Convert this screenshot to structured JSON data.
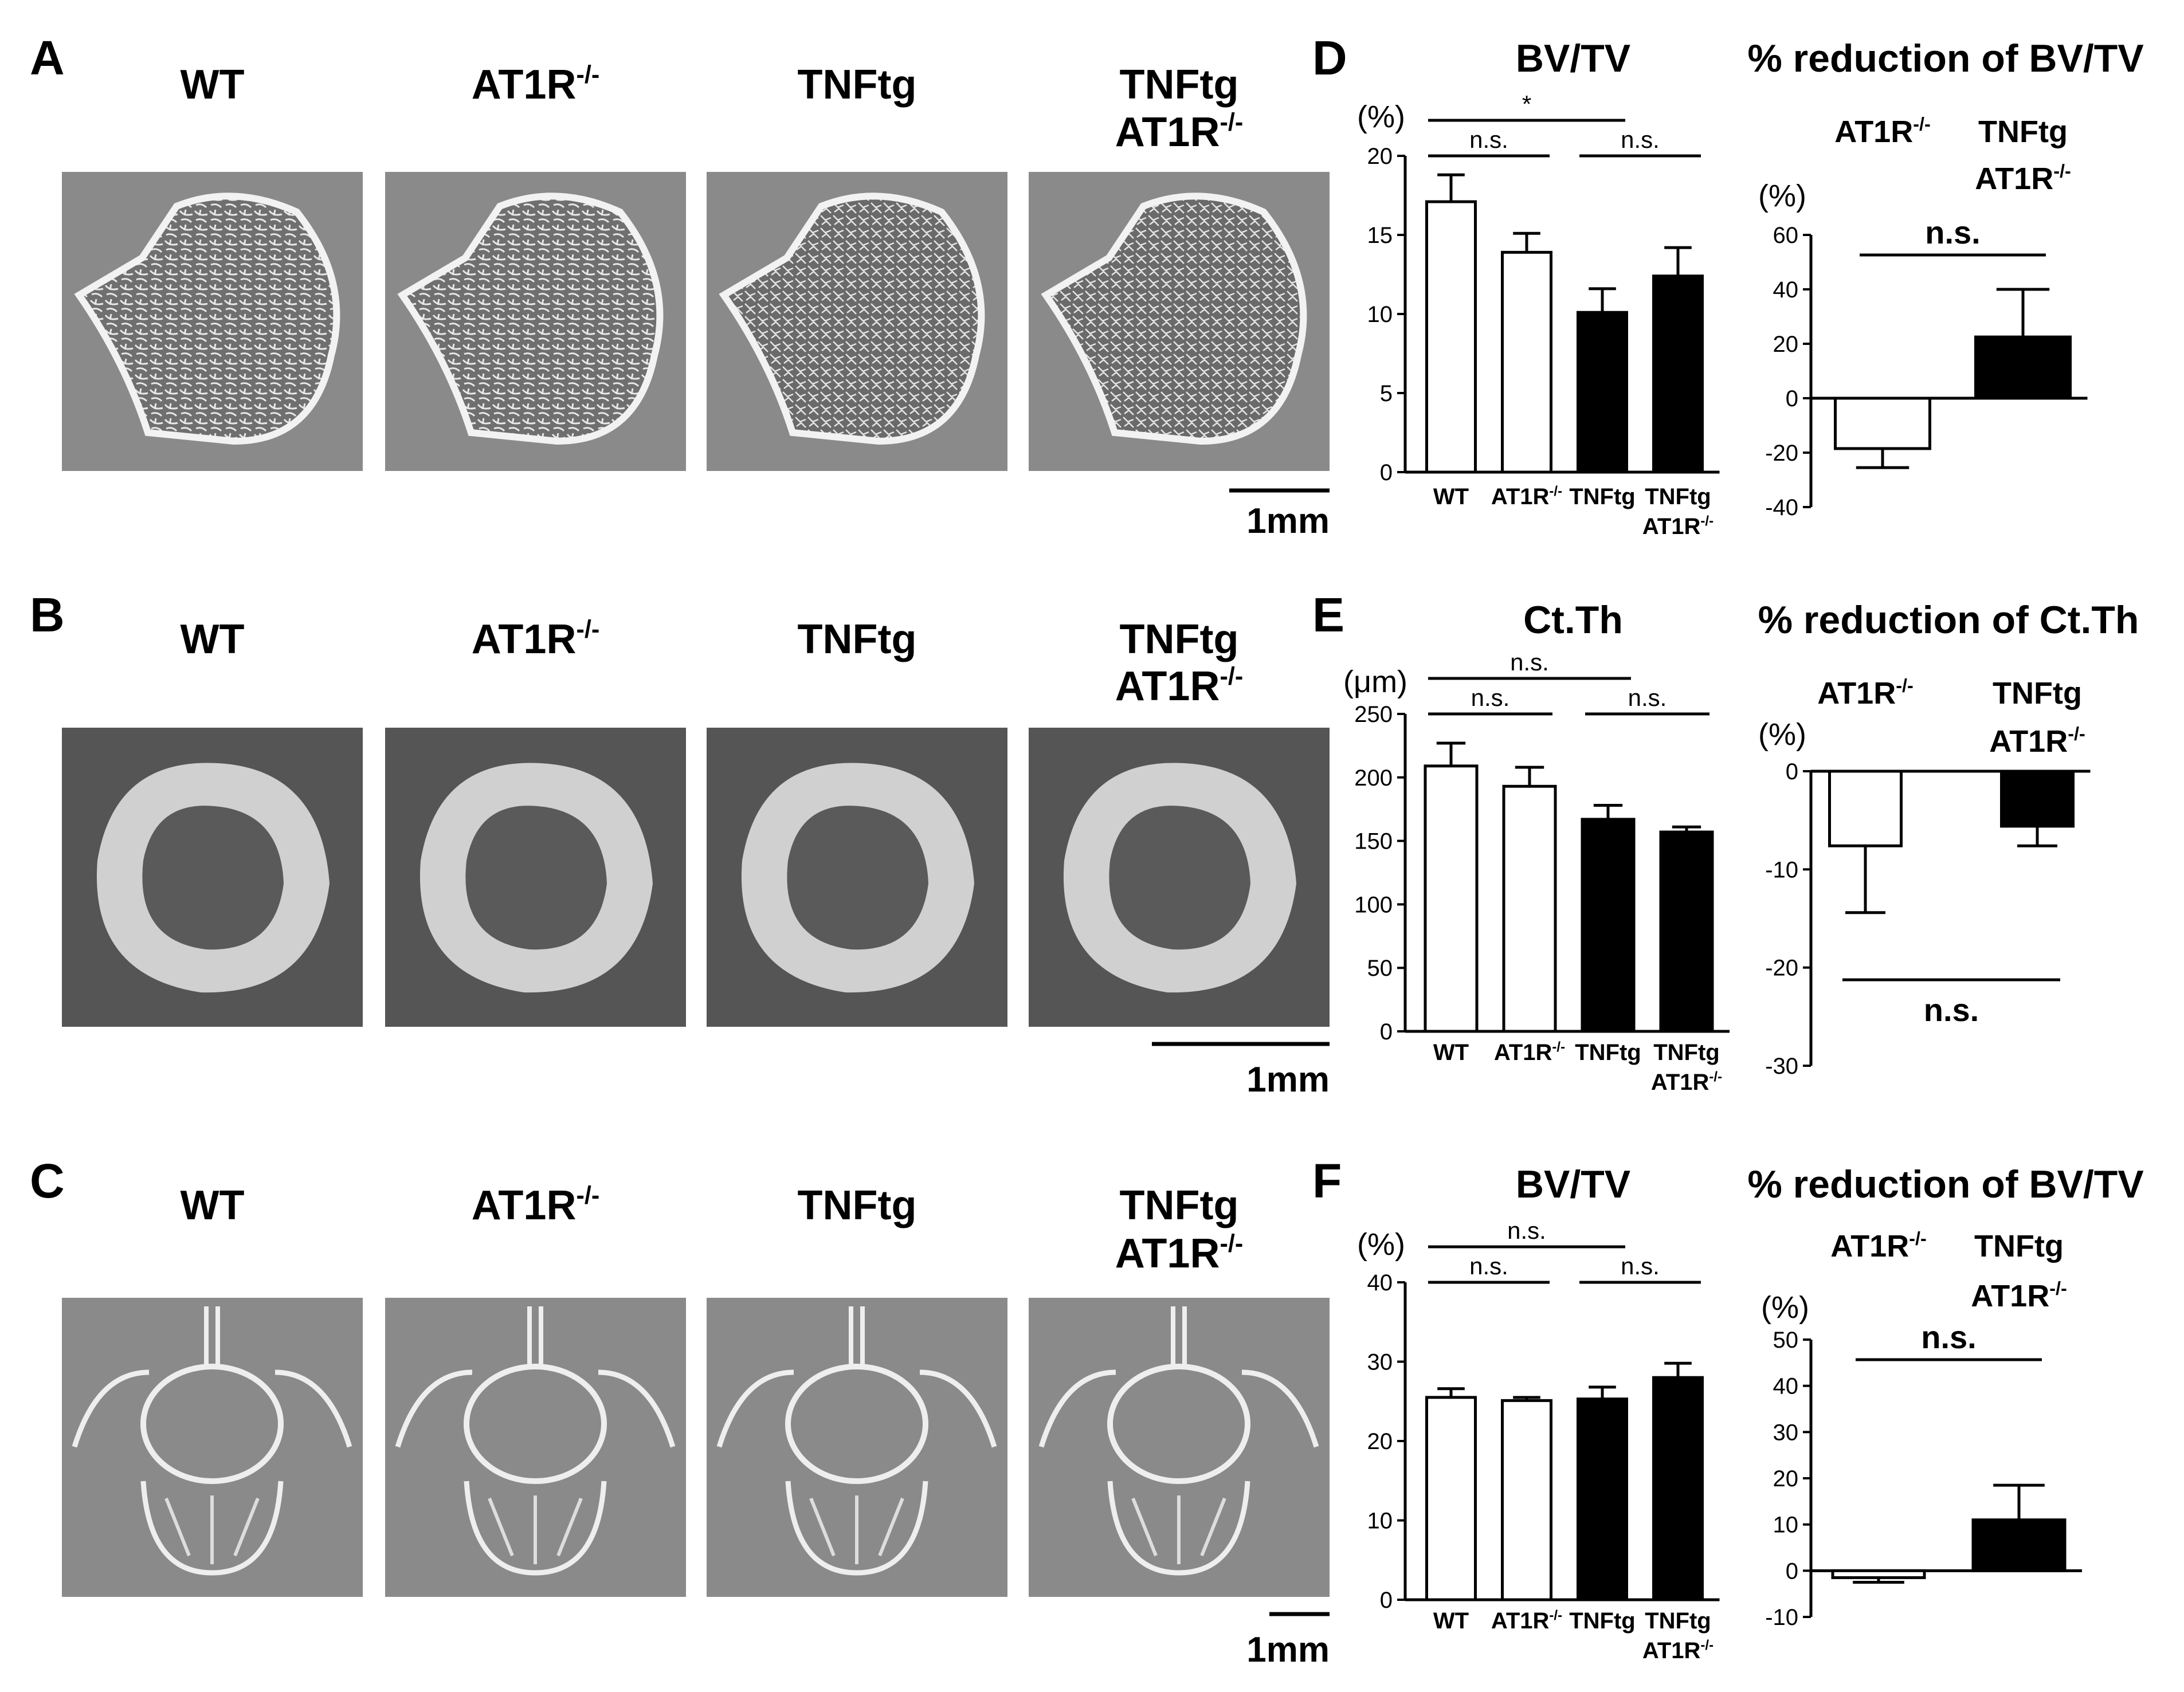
{
  "panel_letters": [
    "A",
    "B",
    "C",
    "D",
    "E",
    "F"
  ],
  "image_panels": [
    {
      "letter": "A",
      "kind": "trabecular",
      "columns": [
        {
          "line1": "WT",
          "line2": ""
        },
        {
          "line1": "AT1R",
          "sup1": "-/-",
          "line2": ""
        },
        {
          "line1": "TNFtg",
          "line2": ""
        },
        {
          "line1": "TNFtg",
          "line2": "AT1R",
          "sup2": "-/-"
        }
      ],
      "scale_bar": "1mm"
    },
    {
      "letter": "B",
      "kind": "cortical",
      "columns": [
        {
          "line1": "WT",
          "line2": ""
        },
        {
          "line1": "AT1R",
          "sup1": "-/-",
          "line2": ""
        },
        {
          "line1": "TNFtg",
          "line2": ""
        },
        {
          "line1": "TNFtg",
          "line2": "AT1R",
          "sup2": "-/-"
        }
      ],
      "scale_bar": "1mm"
    },
    {
      "letter": "C",
      "kind": "vertebra",
      "columns": [
        {
          "line1": "WT",
          "line2": ""
        },
        {
          "line1": "AT1R",
          "sup1": "-/-",
          "line2": ""
        },
        {
          "line1": "TNFtg",
          "line2": ""
        },
        {
          "line1": "TNFtg",
          "line2": "AT1R",
          "sup2": "-/-"
        }
      ],
      "scale_bar": "1mm"
    }
  ],
  "chart_data": [
    {
      "panel": "D",
      "type": "bar",
      "title": "BV/TV",
      "unit": "(%)",
      "categories": [
        {
          "l1": "WT",
          "l2": "",
          "sup": ""
        },
        {
          "l1": "AT1R",
          "l2": "",
          "sup": "-/-"
        },
        {
          "l1": "TNFtg",
          "l2": "",
          "sup": ""
        },
        {
          "l1": "TNFtg",
          "l2": "AT1R",
          "sup": "-/-"
        }
      ],
      "values": [
        17.1,
        13.9,
        10.1,
        12.4
      ],
      "errors": [
        1.7,
        1.2,
        1.5,
        1.8
      ],
      "fills": [
        "#ffffff",
        "#ffffff",
        "#000000",
        "#000000"
      ],
      "ylim": [
        0,
        20
      ],
      "yticks": [
        0,
        5,
        10,
        15,
        20
      ],
      "significance": [
        {
          "from": 0,
          "to": 1,
          "label": "n.s."
        },
        {
          "from": 2,
          "to": 3,
          "label": "n.s."
        },
        {
          "from": 0,
          "to": 2,
          "label": "*"
        }
      ]
    },
    {
      "panel": "D2",
      "type": "bar",
      "title": "% reduction of BV/TV",
      "unit": "(%)",
      "categories": [
        {
          "l1": "AT1R",
          "l2": "",
          "sup": "-/-"
        },
        {
          "l1": "TNFtg",
          "l2": "AT1R",
          "sup": "-/-"
        }
      ],
      "values": [
        -18.5,
        22.5
      ],
      "errors": [
        7.0,
        17.5
      ],
      "fills": [
        "#ffffff",
        "#000000"
      ],
      "ylim": [
        -40,
        60
      ],
      "yticks": [
        -40,
        -20,
        0,
        20,
        40,
        60
      ],
      "significance": [
        {
          "from": 0,
          "to": 1,
          "label": "n.s."
        }
      ]
    },
    {
      "panel": "E",
      "type": "bar",
      "title": "Ct.Th",
      "unit": "(μm)",
      "categories": [
        {
          "l1": "WT",
          "l2": "",
          "sup": ""
        },
        {
          "l1": "AT1R",
          "l2": "",
          "sup": "-/-"
        },
        {
          "l1": "TNFtg",
          "l2": "",
          "sup": ""
        },
        {
          "l1": "TNFtg",
          "l2": "AT1R",
          "sup": "-/-"
        }
      ],
      "values": [
        209,
        193,
        167,
        157
      ],
      "errors": [
        18,
        15,
        11,
        4
      ],
      "fills": [
        "#ffffff",
        "#ffffff",
        "#000000",
        "#000000"
      ],
      "ylim": [
        0,
        250
      ],
      "yticks": [
        0,
        50,
        100,
        150,
        200,
        250
      ],
      "significance": [
        {
          "from": 0,
          "to": 1,
          "label": "n.s."
        },
        {
          "from": 2,
          "to": 3,
          "label": "n.s."
        },
        {
          "from": 0,
          "to": 2,
          "label": "n.s."
        }
      ]
    },
    {
      "panel": "E2",
      "type": "bar",
      "title": "% reduction of Ct.Th",
      "unit": "(%)",
      "categories": [
        {
          "l1": "AT1R",
          "l2": "",
          "sup": "-/-"
        },
        {
          "l1": "TNFtg",
          "l2": "AT1R",
          "sup": "-/-"
        }
      ],
      "values": [
        -7.6,
        -5.6
      ],
      "errors": [
        6.8,
        2.0
      ],
      "fills": [
        "#ffffff",
        "#000000"
      ],
      "ylim": [
        -30,
        0
      ],
      "yticks": [
        -30,
        -20,
        -10,
        0
      ],
      "significance": [
        {
          "from": 0,
          "to": 1,
          "label": "n.s.",
          "below": true
        }
      ]
    },
    {
      "panel": "F",
      "type": "bar",
      "title": "BV/TV",
      "unit": "(%)",
      "categories": [
        {
          "l1": "WT",
          "l2": "",
          "sup": ""
        },
        {
          "l1": "AT1R",
          "l2": "",
          "sup": "-/-"
        },
        {
          "l1": "TNFtg",
          "l2": "",
          "sup": ""
        },
        {
          "l1": "TNFtg",
          "l2": "AT1R",
          "sup": "-/-"
        }
      ],
      "values": [
        25.5,
        25.1,
        25.3,
        28.0
      ],
      "errors": [
        1.1,
        0.4,
        1.5,
        1.8
      ],
      "fills": [
        "#ffffff",
        "#ffffff",
        "#000000",
        "#000000"
      ],
      "ylim": [
        0,
        40
      ],
      "yticks": [
        0,
        10,
        20,
        30,
        40
      ],
      "significance": [
        {
          "from": 0,
          "to": 1,
          "label": "n.s."
        },
        {
          "from": 2,
          "to": 3,
          "label": "n.s."
        },
        {
          "from": 0,
          "to": 2,
          "label": "n.s."
        }
      ]
    },
    {
      "panel": "F2",
      "type": "bar",
      "title": "% reduction of BV/TV",
      "unit": "(%)",
      "categories": [
        {
          "l1": "AT1R",
          "l2": "",
          "sup": "-/-"
        },
        {
          "l1": "TNFtg",
          "l2": "AT1R",
          "sup": "-/-"
        }
      ],
      "values": [
        -1.5,
        11.0
      ],
      "errors": [
        1.0,
        7.5
      ],
      "fills": [
        "#ffffff",
        "#000000"
      ],
      "ylim": [
        -10,
        50
      ],
      "yticks": [
        -10,
        0,
        10,
        20,
        30,
        40,
        50
      ],
      "significance": [
        {
          "from": 0,
          "to": 1,
          "label": "n.s."
        }
      ]
    }
  ]
}
